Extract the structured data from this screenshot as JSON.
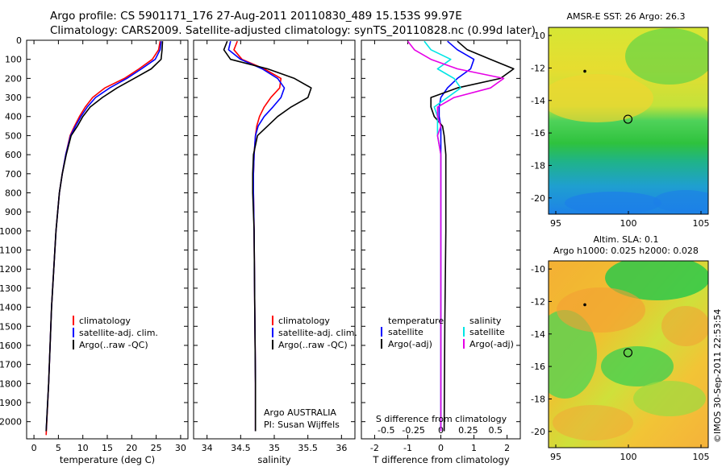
{
  "header": {
    "title_line1": "Argo profile: CS 5901171_176 27-Aug-2011 20110830_489 15.153S 99.97E",
    "title_line2": "Climatology: CARS2009. Satellite-adjusted climatology: synTS_20110828.nc (0.99d later)"
  },
  "stamp": "©IMOS 30-Sep-2011 22:53:54",
  "colors": {
    "climatology": "#ff0000",
    "satellite": "#0000ff",
    "argo": "#000000",
    "satellite_s": "#00e5e5",
    "argo_s": "#e600e6"
  },
  "chart_data": [
    {
      "type": "line",
      "name": "temperature-panel",
      "xlabel": "temperature (deg C)",
      "ylabel": "",
      "xlim": [
        -1.5,
        31.5
      ],
      "ylim": [
        2090,
        0
      ],
      "xticks": [
        0,
        5,
        10,
        15,
        20,
        25,
        30
      ],
      "yticks": [
        0,
        100,
        200,
        300,
        400,
        500,
        600,
        700,
        800,
        900,
        1000,
        1100,
        1200,
        1300,
        1400,
        1500,
        1600,
        1700,
        1800,
        1900,
        2000
      ],
      "legend": [
        "climatology",
        "satellite-adj. clim.",
        "Argo(..raw -QC)"
      ],
      "legend_position": "lower-center",
      "series": [
        {
          "name": "climatology",
          "color_key": "climatology",
          "x": [
            25.8,
            25.5,
            24.2,
            21.5,
            18.5,
            14.5,
            12.0,
            10.5,
            9.3,
            8.3,
            7.4,
            6.5,
            5.8,
            5.2,
            4.5,
            3.6,
            3.0,
            2.5
          ],
          "y": [
            5,
            50,
            100,
            150,
            200,
            250,
            300,
            350,
            400,
            450,
            500,
            600,
            700,
            800,
            1000,
            1400,
            1800,
            2070
          ]
        },
        {
          "name": "satellite-adj. clim.",
          "color_key": "satellite",
          "x": [
            26.0,
            25.8,
            24.8,
            22.0,
            19.0,
            15.5,
            12.6,
            10.9,
            9.6,
            8.5,
            7.5,
            6.5,
            5.8,
            5.2,
            4.5,
            3.6,
            3.0,
            2.5
          ],
          "y": [
            5,
            50,
            100,
            150,
            200,
            250,
            300,
            350,
            400,
            450,
            500,
            600,
            700,
            800,
            1000,
            1400,
            1800,
            2050
          ]
        },
        {
          "name": "Argo(..raw -QC)",
          "color_key": "argo",
          "x": [
            26.3,
            26.2,
            26.0,
            24.0,
            20.5,
            17.0,
            14.0,
            11.5,
            10.0,
            8.9,
            7.6,
            6.6,
            5.8,
            5.2,
            4.5,
            3.6,
            3.0,
            2.5
          ],
          "y": [
            5,
            50,
            100,
            150,
            200,
            250,
            300,
            350,
            400,
            450,
            500,
            600,
            700,
            800,
            1000,
            1400,
            1800,
            2050
          ]
        }
      ]
    },
    {
      "type": "line",
      "name": "salinity-panel",
      "xlabel": "salinity",
      "xlim": [
        33.8,
        36.2
      ],
      "ylim": [
        2090,
        0
      ],
      "xticks": [
        34,
        34.5,
        35,
        35.5,
        36
      ],
      "legend": [
        "climatology",
        "satellite-adj. clim.",
        "Argo(..raw -QC)"
      ],
      "legend_position": "lower-center",
      "annotation_line1": "Argo AUSTRALIA",
      "annotation_line2": "PI: Susan Wijffels",
      "series": [
        {
          "name": "climatology",
          "color_key": "climatology",
          "x": [
            34.45,
            34.4,
            34.52,
            34.85,
            35.1,
            35.08,
            34.95,
            34.85,
            34.78,
            34.74,
            34.72,
            34.7,
            34.69,
            34.69,
            34.7,
            34.71,
            34.72,
            34.72
          ],
          "y": [
            5,
            50,
            100,
            150,
            200,
            250,
            300,
            350,
            400,
            450,
            500,
            600,
            700,
            800,
            1000,
            1400,
            1800,
            2050
          ]
        },
        {
          "name": "satellite-adj. clim.",
          "color_key": "satellite",
          "x": [
            34.35,
            34.32,
            34.5,
            34.82,
            35.05,
            35.15,
            35.1,
            34.98,
            34.85,
            34.76,
            34.72,
            34.7,
            34.69,
            34.69,
            34.7,
            34.71,
            34.72,
            34.72
          ],
          "y": [
            5,
            50,
            100,
            150,
            200,
            250,
            300,
            350,
            400,
            450,
            500,
            600,
            700,
            800,
            1000,
            1400,
            1800,
            2050
          ]
        },
        {
          "name": "Argo(..raw -QC)",
          "color_key": "argo",
          "x": [
            34.3,
            34.25,
            34.35,
            34.9,
            35.3,
            35.55,
            35.5,
            35.25,
            35.05,
            34.9,
            34.75,
            34.69,
            34.68,
            34.68,
            34.7,
            34.71,
            34.72,
            34.72
          ],
          "y": [
            5,
            50,
            100,
            150,
            200,
            250,
            300,
            350,
            400,
            450,
            500,
            600,
            700,
            800,
            1000,
            1400,
            1800,
            2050
          ]
        }
      ]
    },
    {
      "type": "line",
      "name": "difference-panel",
      "xlabel": "T difference from climatology",
      "top_xlabel": "S difference from climatology",
      "xlim": [
        -2.4,
        2.4
      ],
      "ylim": [
        2090,
        0
      ],
      "xticks": [
        -2,
        -1,
        0,
        1,
        2
      ],
      "top_xticks": [
        -0.5,
        -0.25,
        0,
        0.25,
        0.5
      ],
      "top_xtick_labels": [
        "-0.5",
        "-0.25",
        "0",
        "0.25",
        "0.5"
      ],
      "legend_left_title": "temperature",
      "legend_right_title": "salinity",
      "legend_left": [
        "satellite",
        "Argo(-adj)"
      ],
      "legend_right": [
        "satellite",
        "Argo(-adj)"
      ],
      "series": [
        {
          "name": "T satellite",
          "color_key": "satellite",
          "x": [
            0.2,
            0.5,
            1.0,
            0.9,
            0.5,
            0.2,
            0.0,
            -0.05,
            -0.05,
            0.0,
            0.0,
            0.0,
            0.0,
            0.0,
            0.0,
            0.0
          ],
          "y": [
            5,
            50,
            100,
            150,
            200,
            250,
            300,
            350,
            400,
            450,
            500,
            600,
            800,
            1000,
            1500,
            2050
          ]
        },
        {
          "name": "T Argo",
          "color_key": "argo",
          "x": [
            0.5,
            0.8,
            1.5,
            2.2,
            1.8,
            0.5,
            -0.3,
            -0.3,
            -0.2,
            0.05,
            0.1,
            0.15,
            0.15,
            0.15,
            0.12,
            0.1
          ],
          "y": [
            5,
            50,
            100,
            150,
            200,
            250,
            300,
            350,
            400,
            450,
            500,
            600,
            800,
            1000,
            1500,
            2050
          ]
        },
        {
          "name": "S satellite",
          "color_key": "satellite_s",
          "x": [
            -0.5,
            -0.3,
            0.3,
            -0.1,
            0.4,
            0.6,
            0.2,
            -0.2,
            -0.1,
            -0.1,
            -0.1,
            0.0,
            0.0,
            0.0,
            0.0,
            0.0
          ],
          "y": [
            5,
            50,
            100,
            150,
            200,
            250,
            300,
            350,
            400,
            450,
            500,
            600,
            800,
            1000,
            1500,
            2050
          ]
        },
        {
          "name": "S Argo",
          "color_key": "argo_s",
          "x": [
            -1.0,
            -0.8,
            -0.3,
            0.5,
            1.9,
            1.5,
            0.4,
            -0.1,
            -0.1,
            0.0,
            -0.1,
            0.0,
            0.0,
            0.0,
            0.0,
            0.0
          ],
          "y": [
            5,
            50,
            100,
            150,
            200,
            250,
            300,
            350,
            400,
            450,
            500,
            600,
            800,
            1000,
            1500,
            2050
          ]
        }
      ]
    },
    {
      "type": "heatmap",
      "name": "sst-map",
      "title": "AMSR-E SST: 26 Argo: 26.3",
      "xlim": [
        94.5,
        105.5
      ],
      "ylim": [
        -21,
        -9.5
      ],
      "xticks": [
        95,
        100,
        105
      ],
      "yticks": [
        -10,
        -12,
        -14,
        -16,
        -18,
        -20
      ],
      "float_marker": [
        99.97,
        -15.153
      ],
      "track_point": [
        97.0,
        -12.2
      ]
    },
    {
      "type": "heatmap",
      "name": "sla-map",
      "title_line1": "Altim. SLA: 0.1",
      "title_line2": "Argo h1000: 0.025 h2000: 0.028",
      "xlim": [
        94.5,
        105.5
      ],
      "ylim": [
        -21,
        -9.5
      ],
      "xticks": [
        95,
        100,
        105
      ],
      "yticks": [
        -10,
        -12,
        -14,
        -16,
        -18,
        -20
      ],
      "float_marker": [
        99.97,
        -15.153
      ],
      "track_point": [
        97.0,
        -12.2
      ]
    }
  ]
}
